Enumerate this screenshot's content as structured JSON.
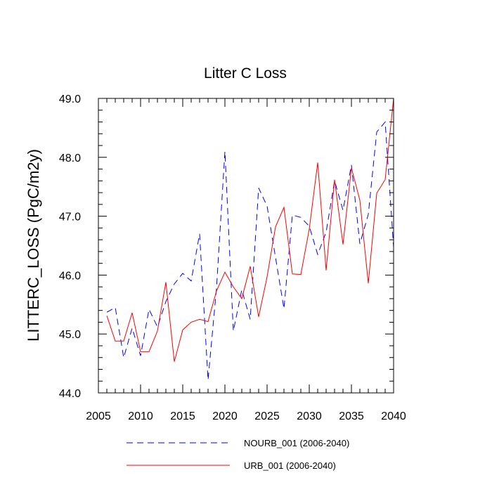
{
  "chart_data": {
    "type": "line",
    "title": "Litter C Loss",
    "xlabel": "",
    "ylabel": "LITTERC_LOSS  (PgC/m2y)",
    "xlim": [
      2005,
      2040
    ],
    "ylim": [
      44.0,
      49.0
    ],
    "xticks": [
      2005,
      2010,
      2015,
      2020,
      2025,
      2030,
      2035,
      2040
    ],
    "xtick_labels": [
      "2005",
      "2010",
      "2015",
      "2020",
      "2025",
      "2030",
      "2035",
      "2040"
    ],
    "yticks": [
      44.0,
      45.0,
      46.0,
      47.0,
      48.0,
      49.0
    ],
    "ytick_labels": [
      "44.0",
      "45.0",
      "46.0",
      "47.0",
      "48.0",
      "49.0"
    ],
    "grid": false,
    "legend_position": "bottom",
    "x": [
      2006,
      2007,
      2008,
      2009,
      2010,
      2011,
      2012,
      2013,
      2014,
      2015,
      2016,
      2017,
      2018,
      2019,
      2020,
      2021,
      2022,
      2023,
      2024,
      2025,
      2026,
      2027,
      2028,
      2029,
      2030,
      2031,
      2032,
      2033,
      2034,
      2035,
      2036,
      2037,
      2038,
      2039,
      2040
    ],
    "series": [
      {
        "name": "NOURB_001 (2006-2040)",
        "color": "#0000ff",
        "dash": "dashed",
        "values": [
          45.37,
          45.45,
          44.6,
          45.1,
          44.63,
          45.42,
          45.12,
          45.55,
          45.85,
          46.03,
          45.9,
          46.7,
          44.22,
          45.77,
          48.1,
          45.05,
          45.75,
          45.25,
          47.48,
          47.17,
          46.3,
          45.43,
          47.02,
          46.98,
          46.83,
          46.35,
          46.73,
          47.6,
          47.1,
          47.87,
          46.53,
          47.03,
          48.43,
          48.6,
          46.47
        ]
      },
      {
        "name": "URB_001 (2006-2040)",
        "color": "#ff0000",
        "dash": "solid",
        "values": [
          45.31,
          44.88,
          44.88,
          45.36,
          44.7,
          44.7,
          45.05,
          45.88,
          44.53,
          45.07,
          45.2,
          45.25,
          45.21,
          45.73,
          46.05,
          45.8,
          45.6,
          46.15,
          45.29,
          45.97,
          46.82,
          47.15,
          46.02,
          46.01,
          46.78,
          47.91,
          46.08,
          47.62,
          46.52,
          47.82,
          47.27,
          45.86,
          47.39,
          47.62,
          49.0
        ]
      }
    ]
  }
}
